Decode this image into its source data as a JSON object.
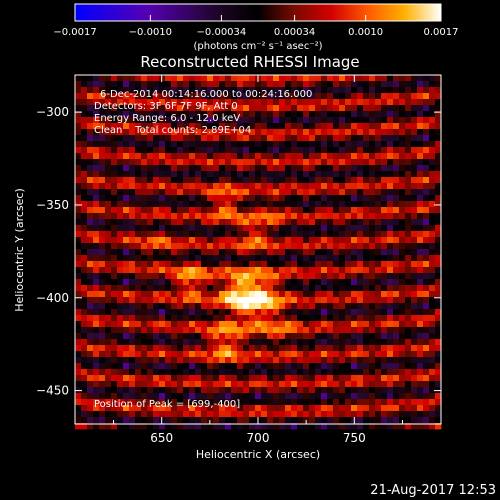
{
  "chart_data": {
    "type": "heatmap",
    "title": "Reconstructed RHESSI Image",
    "xlabel": "Heliocentric X (arcsec)",
    "ylabel": "Heliocentric Y (arcsec)",
    "xlim": [
      605,
      795
    ],
    "ylim": [
      -468,
      -280
    ],
    "x_ticks": [
      650,
      700,
      750
    ],
    "y_ticks": [
      -300,
      -350,
      -400,
      -450
    ],
    "annotations": [
      "6-Dec-2014 00:14:16.000 to 00:24:16.000",
      "Detectors: 3F 6F 7F 9F, Att 0",
      "Energy Range: 6.0 - 12.0 keV",
      "Clean    Total counts: 2.89E+04"
    ],
    "peak_label": "Position of Peak = [699,-400]",
    "peak": [
      699,
      -400
    ],
    "sources": [
      {
        "x": 699,
        "y": -400,
        "amp": 1.0,
        "sigma": 9
      },
      {
        "x": 689,
        "y": -397,
        "amp": 0.55,
        "sigma": 7
      },
      {
        "x": 665,
        "y": -391,
        "amp": 0.7,
        "sigma": 6
      },
      {
        "x": 683,
        "y": -424,
        "amp": 0.68,
        "sigma": 7
      },
      {
        "x": 683,
        "y": -349,
        "amp": 0.6,
        "sigma": 6
      },
      {
        "x": 698,
        "y": -365,
        "amp": 0.55,
        "sigma": 6
      },
      {
        "x": 708,
        "y": -353,
        "amp": 0.3,
        "sigma": 5
      },
      {
        "x": 648,
        "y": -372,
        "amp": 0.28,
        "sigma": 7
      },
      {
        "x": 712,
        "y": -418,
        "amp": 0.3,
        "sigma": 7
      }
    ],
    "colorbar": {
      "min": -0.0017,
      "max": 0.0017,
      "ticks": [
        "-0.0017",
        "-0.0010",
        "-0.00034",
        "0.00034",
        "0.0010",
        "0.0017"
      ],
      "label": "(photons cm⁻² s⁻¹ asec⁻²)"
    },
    "colors": {
      "colormap": [
        "#0000ff",
        "#5500b0",
        "#2a0a30",
        "#000000",
        "#6a0a00",
        "#d20000",
        "#ff5a00",
        "#ffa000",
        "#ffe070",
        "#ffffff"
      ]
    }
  },
  "footer": {
    "timestamp": "21-Aug-2017 12:53"
  }
}
